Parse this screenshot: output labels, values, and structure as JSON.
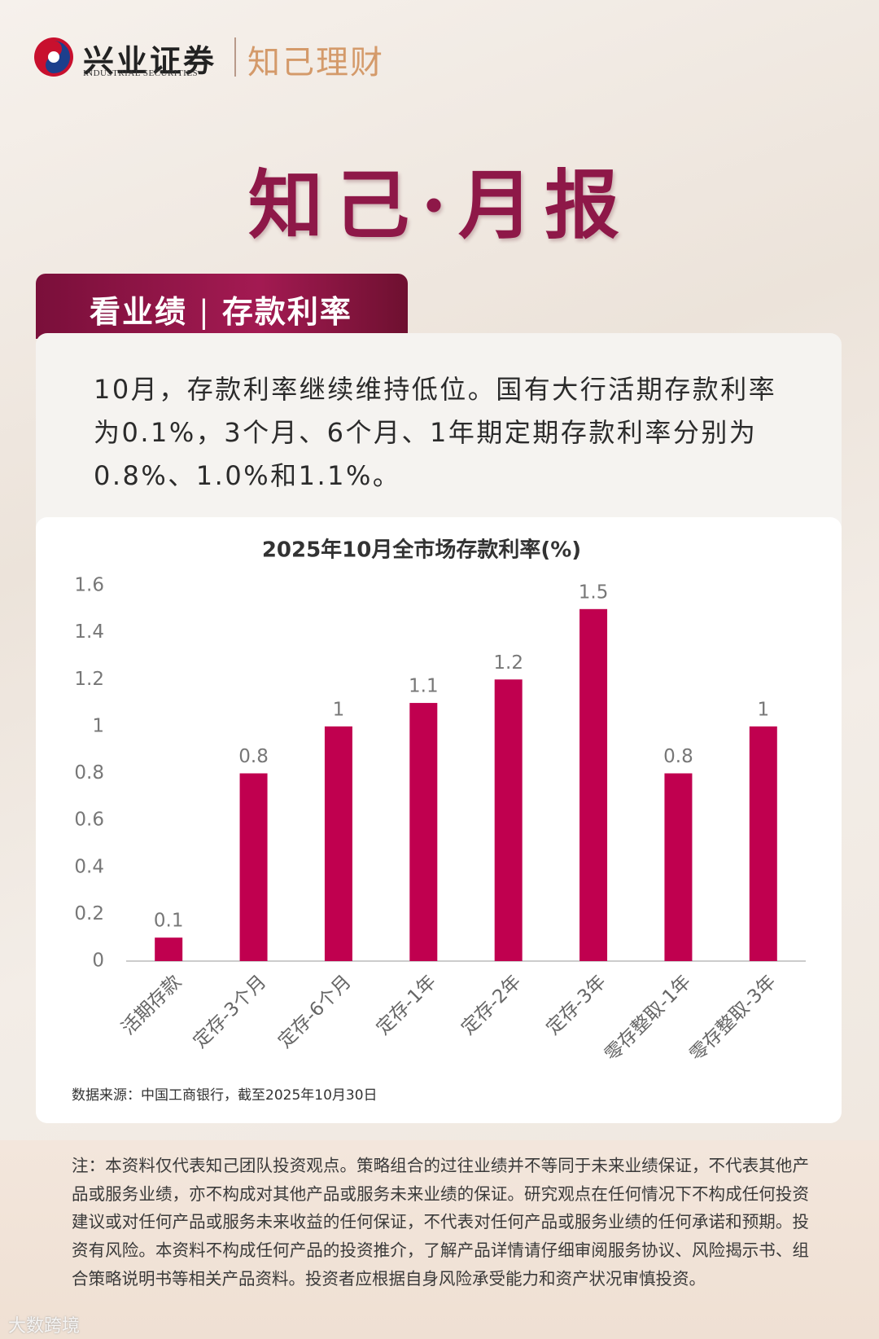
{
  "header": {
    "company": "兴业证券",
    "company_en": "INDUSTRIAL SECURITIES",
    "brand": "知己理财",
    "title": "知己·月报"
  },
  "section": {
    "tab_left": "看业绩",
    "tab_right": "存款利率",
    "summary": "10月，存款利率继续维持低位。国有大行活期存款利率为0.1%，3个月、6个月、1年期定期存款利率分别为0.8%、1.0%和1.1%。"
  },
  "chart_data": {
    "type": "bar",
    "title": "2025年10月全市场存款利率(%)",
    "categories": [
      "活期存款",
      "定存-3个月",
      "定存-6个月",
      "定存-1年",
      "定存-2年",
      "定存-3年",
      "零存整取-1年",
      "零存整取-3年"
    ],
    "values": [
      0.1,
      0.8,
      1,
      1.1,
      1.2,
      1.5,
      0.8,
      1
    ],
    "color": "#c0004f",
    "ylim": [
      0,
      1.6
    ],
    "yticks": [
      0,
      0.2,
      0.4,
      0.6,
      0.8,
      1,
      1.2,
      1.4,
      1.6
    ],
    "grid": false,
    "source": "数据来源：中国工商银行，截至2025年10月30日"
  },
  "footer": {
    "note": "注：本资料仅代表知己团队投资观点。策略组合的过往业绩并不等同于未来业绩保证，不代表其他产品或服务业绩，亦不构成对其他产品或服务未来业绩的保证。研究观点在任何情况下不构成任何投资建议或对任何产品或服务未来收益的任何保证，不代表对任何产品或服务业绩的任何承诺和预期。投资有风险。本资料不构成任何产品的投资推介，了解产品详情请仔细审阅服务协议、风险揭示书、组合策略说明书等相关产品资料。投资者应根据自身风险承受能力和资产状况审慎投资。",
    "watermark": "大数跨境"
  }
}
